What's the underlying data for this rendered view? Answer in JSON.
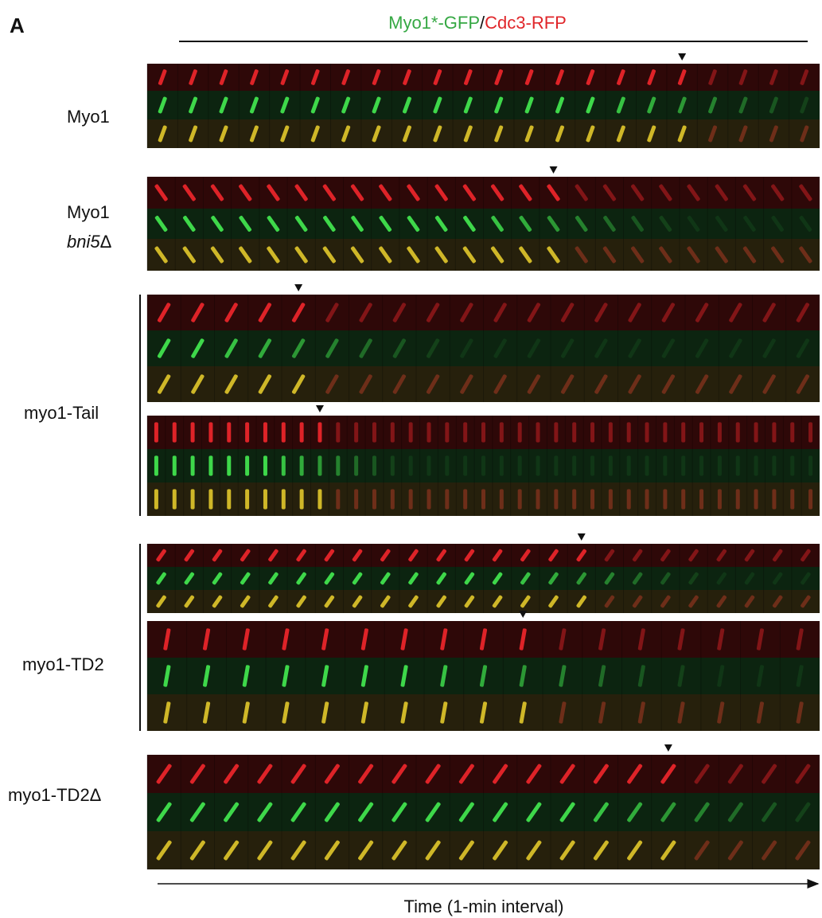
{
  "figure": {
    "panel_label": "A",
    "title": {
      "gfp": "Myo1*-GFP",
      "separator": "/",
      "rfp": "Cdc3-RFP"
    },
    "rows": [
      {
        "label": "Myo1"
      },
      {
        "label": "Myo1",
        "sublabel_italic": "bni5",
        "sublabel_symbol": "Δ"
      },
      {
        "label": "myo1-Tail"
      },
      {
        "label": "myo1-TD2"
      },
      {
        "label": "myo1-TD2Δ"
      }
    ],
    "x_axis_label": "Time (1-min interval)"
  }
}
